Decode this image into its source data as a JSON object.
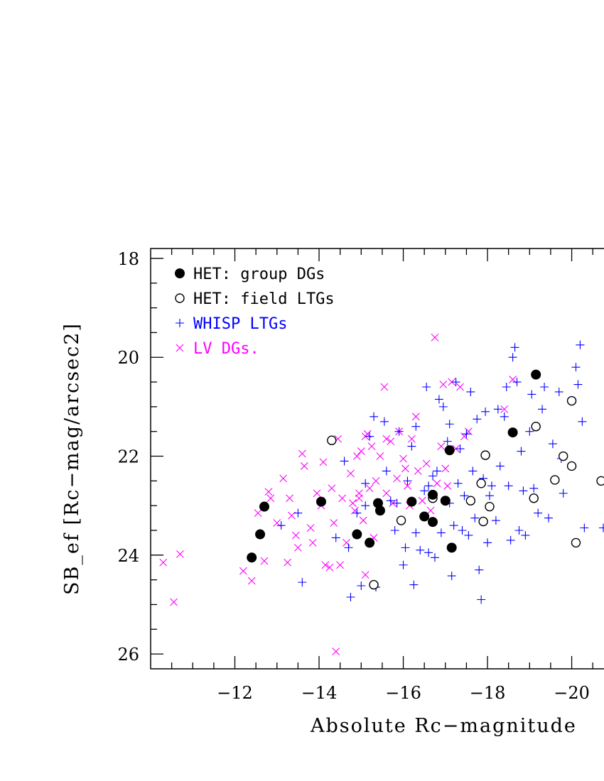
{
  "chart_data": {
    "type": "scatter",
    "xlabel": "Absolute Rc−magnitude",
    "ylabel": "SB_ef [Rc−mag/arcsec2]",
    "xlim": [
      -10,
      -20.75
    ],
    "ylim": [
      26.3,
      17.8
    ],
    "x_ticks": [
      -12,
      -14,
      -16,
      -18,
      -20
    ],
    "x_tick_labels": [
      "−12",
      "−14",
      "−16",
      "−18",
      "−20"
    ],
    "y_ticks": [
      18,
      20,
      22,
      24,
      26
    ],
    "y_tick_labels": [
      "18",
      "20",
      "22",
      "24",
      "26"
    ],
    "legend_position": "top-left",
    "grid": false,
    "series": [
      {
        "name": "HET: group DGs",
        "marker": "filled-circle",
        "color": "#000000",
        "points": [
          [
            -12.4,
            24.05
          ],
          [
            -12.6,
            23.58
          ],
          [
            -12.7,
            23.02
          ],
          [
            -14.05,
            22.92
          ],
          [
            -14.9,
            23.58
          ],
          [
            -15.2,
            23.75
          ],
          [
            -15.4,
            22.95
          ],
          [
            -15.45,
            23.1
          ],
          [
            -16.2,
            22.92
          ],
          [
            -16.5,
            23.22
          ],
          [
            -16.7,
            22.78
          ],
          [
            -16.7,
            23.33
          ],
          [
            -17.0,
            22.9
          ],
          [
            -17.1,
            21.88
          ],
          [
            -17.15,
            23.85
          ],
          [
            -18.6,
            21.52
          ],
          [
            -19.15,
            20.35
          ]
        ]
      },
      {
        "name": "HET: field LTGs",
        "marker": "open-circle",
        "color": "#000000",
        "points": [
          [
            -14.3,
            21.68
          ],
          [
            -15.3,
            24.6
          ],
          [
            -15.95,
            23.3
          ],
          [
            -16.7,
            22.85
          ],
          [
            -17.6,
            22.9
          ],
          [
            -17.85,
            22.55
          ],
          [
            -17.9,
            23.32
          ],
          [
            -17.95,
            21.98
          ],
          [
            -18.05,
            23.02
          ],
          [
            -19.1,
            22.85
          ],
          [
            -19.15,
            21.4
          ],
          [
            -19.6,
            22.48
          ],
          [
            -19.8,
            22.0
          ],
          [
            -20.0,
            20.88
          ],
          [
            -20.0,
            22.2
          ],
          [
            -20.1,
            23.75
          ],
          [
            -20.7,
            22.5
          ]
        ]
      },
      {
        "name": "WHISP LTGs",
        "marker": "plus",
        "color": "#0000ff",
        "points": [
          [
            -13.1,
            23.4
          ],
          [
            -13.5,
            23.15
          ],
          [
            -13.6,
            24.55
          ],
          [
            -14.4,
            23.65
          ],
          [
            -14.6,
            22.1
          ],
          [
            -14.7,
            23.85
          ],
          [
            -14.75,
            24.85
          ],
          [
            -14.9,
            23.15
          ],
          [
            -15.0,
            24.62
          ],
          [
            -15.1,
            22.55
          ],
          [
            -15.1,
            23.0
          ],
          [
            -15.2,
            21.6
          ],
          [
            -15.3,
            21.2
          ],
          [
            -15.35,
            24.65
          ],
          [
            -15.55,
            21.3
          ],
          [
            -15.6,
            22.3
          ],
          [
            -15.7,
            22.9
          ],
          [
            -15.8,
            23.5
          ],
          [
            -15.9,
            21.5
          ],
          [
            -16.0,
            24.2
          ],
          [
            -16.05,
            23.85
          ],
          [
            -16.1,
            22.5
          ],
          [
            -16.2,
            21.8
          ],
          [
            -16.25,
            24.6
          ],
          [
            -16.3,
            21.4
          ],
          [
            -16.4,
            23.9
          ],
          [
            -16.5,
            22.7
          ],
          [
            -16.55,
            20.6
          ],
          [
            -16.6,
            23.95
          ],
          [
            -16.7,
            22.4
          ],
          [
            -16.75,
            24.05
          ],
          [
            -16.8,
            22.3
          ],
          [
            -16.85,
            20.85
          ],
          [
            -16.9,
            23.55
          ],
          [
            -16.95,
            21.0
          ],
          [
            -17.05,
            21.7
          ],
          [
            -17.1,
            21.35
          ],
          [
            -17.15,
            24.42
          ],
          [
            -17.2,
            23.4
          ],
          [
            -17.25,
            20.5
          ],
          [
            -17.3,
            22.55
          ],
          [
            -17.35,
            21.85
          ],
          [
            -17.4,
            23.5
          ],
          [
            -17.45,
            22.8
          ],
          [
            -17.5,
            21.55
          ],
          [
            -17.55,
            23.6
          ],
          [
            -17.6,
            20.7
          ],
          [
            -17.65,
            22.3
          ],
          [
            -17.7,
            23.25
          ],
          [
            -17.75,
            21.25
          ],
          [
            -17.8,
            24.3
          ],
          [
            -17.85,
            24.9
          ],
          [
            -17.9,
            22.45
          ],
          [
            -17.95,
            21.1
          ],
          [
            -18.0,
            23.75
          ],
          [
            -18.05,
            22.8
          ],
          [
            -18.1,
            22.6
          ],
          [
            -18.2,
            23.3
          ],
          [
            -18.25,
            21.05
          ],
          [
            -18.3,
            22.2
          ],
          [
            -18.4,
            21.2
          ],
          [
            -18.45,
            20.6
          ],
          [
            -18.5,
            22.6
          ],
          [
            -18.55,
            23.7
          ],
          [
            -18.6,
            20.0
          ],
          [
            -18.65,
            19.8
          ],
          [
            -18.7,
            20.5
          ],
          [
            -18.75,
            23.5
          ],
          [
            -18.8,
            21.9
          ],
          [
            -18.85,
            22.7
          ],
          [
            -18.9,
            23.6
          ],
          [
            -19.0,
            21.5
          ],
          [
            -19.05,
            20.75
          ],
          [
            -19.1,
            22.65
          ],
          [
            -19.2,
            23.15
          ],
          [
            -19.3,
            21.05
          ],
          [
            -19.35,
            20.6
          ],
          [
            -19.45,
            23.25
          ],
          [
            -19.55,
            21.75
          ],
          [
            -19.7,
            20.7
          ],
          [
            -19.75,
            22.05
          ],
          [
            -19.8,
            22.75
          ],
          [
            -20.1,
            20.2
          ],
          [
            -20.15,
            20.55
          ],
          [
            -20.2,
            19.75
          ],
          [
            -20.25,
            21.3
          ],
          [
            -20.3,
            23.45
          ],
          [
            -20.75,
            23.45
          ],
          [
            -16.3,
            23.55
          ],
          [
            -15.85,
            22.95
          ],
          [
            -17.1,
            22.95
          ],
          [
            -16.6,
            22.6
          ]
        ]
      },
      {
        "name": "LV DGs.",
        "marker": "cross",
        "color": "#ff00ff",
        "points": [
          [
            -10.3,
            24.15
          ],
          [
            -10.55,
            24.95
          ],
          [
            -10.7,
            23.98
          ],
          [
            -12.2,
            24.32
          ],
          [
            -12.4,
            24.52
          ],
          [
            -12.55,
            23.15
          ],
          [
            -12.7,
            24.12
          ],
          [
            -12.8,
            22.72
          ],
          [
            -12.85,
            22.85
          ],
          [
            -13.0,
            23.35
          ],
          [
            -13.15,
            22.45
          ],
          [
            -13.25,
            24.15
          ],
          [
            -13.3,
            22.85
          ],
          [
            -13.35,
            23.2
          ],
          [
            -13.45,
            23.6
          ],
          [
            -13.5,
            23.85
          ],
          [
            -13.6,
            21.95
          ],
          [
            -13.65,
            22.2
          ],
          [
            -13.8,
            23.45
          ],
          [
            -13.85,
            23.75
          ],
          [
            -13.95,
            22.75
          ],
          [
            -14.05,
            23.0
          ],
          [
            -14.1,
            22.12
          ],
          [
            -14.15,
            24.2
          ],
          [
            -14.25,
            24.25
          ],
          [
            -14.3,
            22.65
          ],
          [
            -14.35,
            23.35
          ],
          [
            -14.4,
            25.95
          ],
          [
            -14.45,
            21.65
          ],
          [
            -14.5,
            24.2
          ],
          [
            -14.55,
            22.85
          ],
          [
            -14.65,
            23.75
          ],
          [
            -14.75,
            22.35
          ],
          [
            -14.8,
            22.95
          ],
          [
            -14.85,
            23.1
          ],
          [
            -14.9,
            22.0
          ],
          [
            -14.95,
            22.75
          ],
          [
            -15.0,
            21.9
          ],
          [
            -15.05,
            23.3
          ],
          [
            -15.1,
            21.6
          ],
          [
            -15.15,
            21.55
          ],
          [
            -15.2,
            22.65
          ],
          [
            -15.25,
            21.8
          ],
          [
            -15.3,
            23.65
          ],
          [
            -15.35,
            22.5
          ],
          [
            -15.45,
            22.0
          ],
          [
            -15.55,
            20.6
          ],
          [
            -15.6,
            22.75
          ],
          [
            -15.7,
            21.7
          ],
          [
            -15.75,
            22.95
          ],
          [
            -15.85,
            22.45
          ],
          [
            -15.9,
            21.5
          ],
          [
            -16.0,
            22.05
          ],
          [
            -16.05,
            22.25
          ],
          [
            -16.1,
            22.6
          ],
          [
            -16.15,
            23.0
          ],
          [
            -16.2,
            21.65
          ],
          [
            -16.3,
            21.2
          ],
          [
            -16.35,
            22.3
          ],
          [
            -16.45,
            22.9
          ],
          [
            -16.55,
            22.15
          ],
          [
            -16.65,
            23.1
          ],
          [
            -16.75,
            19.6
          ],
          [
            -16.8,
            22.55
          ],
          [
            -16.9,
            21.8
          ],
          [
            -16.95,
            20.55
          ],
          [
            -17.0,
            22.25
          ],
          [
            -17.05,
            22.6
          ],
          [
            -17.15,
            20.5
          ],
          [
            -17.25,
            21.85
          ],
          [
            -17.35,
            20.6
          ],
          [
            -17.45,
            21.6
          ],
          [
            -17.55,
            21.5
          ],
          [
            -15.1,
            24.4
          ],
          [
            -14.95,
            22.85
          ],
          [
            -18.4,
            21.05
          ],
          [
            -18.6,
            20.45
          ],
          [
            -15.6,
            21.65
          ]
        ]
      }
    ]
  }
}
